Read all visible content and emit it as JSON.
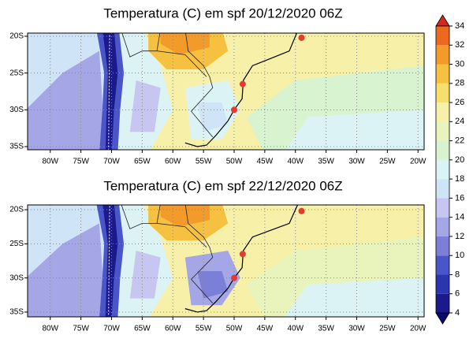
{
  "panels": [
    {
      "title": "Temperatura (C) em spf 20/12/2020 06Z",
      "xticks": [
        "80W",
        "75W",
        "70W",
        "65W",
        "60W",
        "55W",
        "50W",
        "45W",
        "40W",
        "35W",
        "30W",
        "25W",
        "20W"
      ],
      "yticks": [
        "20S",
        "25S",
        "30S",
        "35S"
      ]
    },
    {
      "title": "Temperatura (C) em spf 22/12/2020 06Z",
      "xticks": [
        "80W",
        "75W",
        "70W",
        "65W",
        "60W",
        "55W",
        "50W",
        "45W",
        "40W",
        "35W",
        "30W",
        "25W",
        "20W"
      ],
      "yticks": [
        "20S",
        "25S",
        "30S",
        "35S"
      ]
    }
  ],
  "colorbar": {
    "ticks": [
      4,
      6,
      8,
      10,
      12,
      14,
      16,
      18,
      20,
      22,
      24,
      26,
      28,
      30,
      32,
      34
    ],
    "colors": [
      "#0a0a6e",
      "#1a1a8c",
      "#2b35b0",
      "#4a55c8",
      "#7b7fd8",
      "#a4a6e6",
      "#c6c6f0",
      "#cfe4f7",
      "#dcf3f6",
      "#d7f3d0",
      "#e8f4bc",
      "#f6f0a8",
      "#f7df6c",
      "#f6c040",
      "#f29a2a",
      "#ec6a20",
      "#d8261c"
    ]
  }
}
